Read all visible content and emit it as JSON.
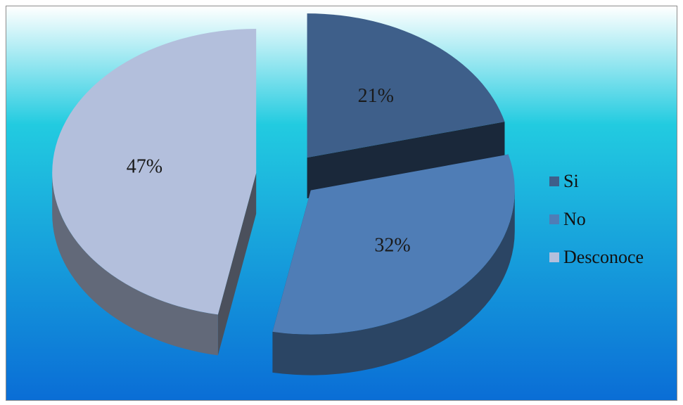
{
  "chart_data": {
    "type": "pie",
    "title": "",
    "categories": [
      "Si",
      "No",
      "Desconoce"
    ],
    "values": [
      21,
      32,
      47
    ],
    "value_labels": [
      "21%",
      "32%",
      "47%"
    ],
    "exploded": true,
    "three_d": true,
    "legend_position": "right",
    "colors": {
      "Si": "#3e5f8a",
      "No": "#4f7db6",
      "Desconoce": "#b3bfdc"
    },
    "background_gradient": [
      "#ffffff",
      "#22cbe0",
      "#0a6dd6"
    ]
  }
}
